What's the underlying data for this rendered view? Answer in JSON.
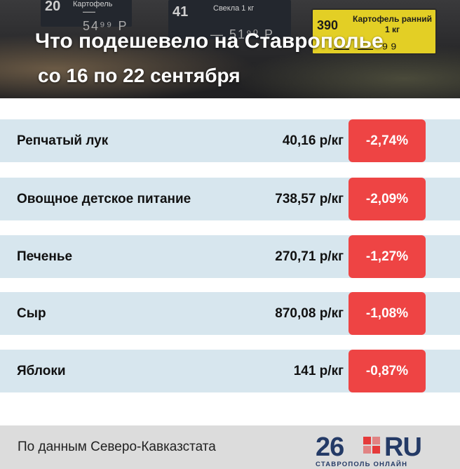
{
  "header": {
    "title": "Что подешевело на Ставрополье",
    "subtitle": "со 16 по 22 сентября",
    "background_tags": [
      {
        "number": "20",
        "label": "Картофель",
        "price": "— 54⁹⁹ Р"
      },
      {
        "number": "41",
        "label": "Свекла 1 кг",
        "price": "— 51⁹⁰ Р"
      },
      {
        "number": "390",
        "label": "Картофель ранний 1 кг",
        "price": "— — ⁹⁹"
      }
    ]
  },
  "rows": [
    {
      "name": "Репчатый лук",
      "value": "40,16 р/кг",
      "change": "-2,74%"
    },
    {
      "name": "Овощное детское питание",
      "value": "738,57 р/кг",
      "change": "-2,09%"
    },
    {
      "name": "Печенье",
      "value": "270,71 р/кг",
      "change": "-1,27%"
    },
    {
      "name": "Сыр",
      "value": "870,08 р/кг",
      "change": "-1,08%"
    },
    {
      "name": "Яблоки",
      "value": "141 р/кг",
      "change": "-0,87%"
    }
  ],
  "footer": {
    "source": "По данным Северо-Кавказстата",
    "logo": {
      "number": "26",
      "domain": "RU",
      "tagline": "СТАВРОПОЛЬ ОНЛАЙН"
    }
  },
  "colors": {
    "row_bg": "#d7e6ee",
    "badge_bg": "#ee4444",
    "footer_bg": "#dcdcdc",
    "logo_blue": "#243a66",
    "logo_red": "#e53a3a"
  }
}
